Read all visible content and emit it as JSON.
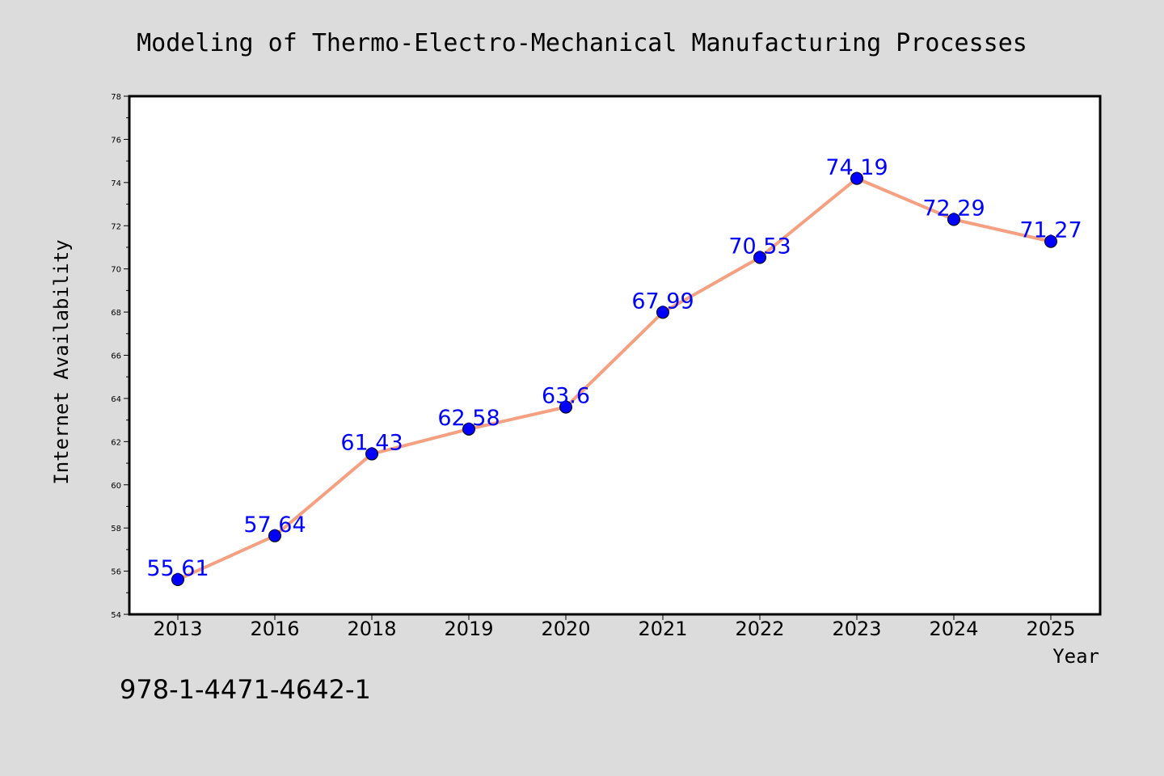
{
  "colors": {
    "background": "#dcdcdc",
    "plot_background": "#ffffff",
    "line": "#f4a081",
    "marker": "#0000ff",
    "label": "#0000ff"
  },
  "footer": {
    "isbn": "978-1-4471-4642-1"
  },
  "chart_data": {
    "type": "line",
    "title": "Modeling of Thermo-Electro-Mechanical Manufacturing Processes",
    "xlabel": "Year",
    "ylabel": "Internet Availability",
    "categories": [
      "2013",
      "2016",
      "2018",
      "2019",
      "2020",
      "2021",
      "2022",
      "2023",
      "2024",
      "2025"
    ],
    "series": [
      {
        "values": [
          55.61,
          57.64,
          61.43,
          62.58,
          63.6,
          67.99,
          70.53,
          74.19,
          72.29,
          71.27
        ],
        "labels": [
          "55.61",
          "57.64",
          "61.43",
          "62.58",
          "63.6",
          "67.99",
          "70.53",
          "74.19",
          "72.29",
          "71.27"
        ]
      }
    ],
    "ylim": [
      54,
      78
    ],
    "yticks": [
      54,
      56,
      58,
      60,
      62,
      64,
      66,
      68,
      70,
      72,
      74,
      76,
      78
    ],
    "ytick_labels": [
      "54",
      "56",
      "58",
      "60",
      "62",
      "64",
      "66",
      "68",
      "70",
      "72",
      "74",
      "76",
      "78"
    ],
    "grid": false,
    "legend": false
  }
}
